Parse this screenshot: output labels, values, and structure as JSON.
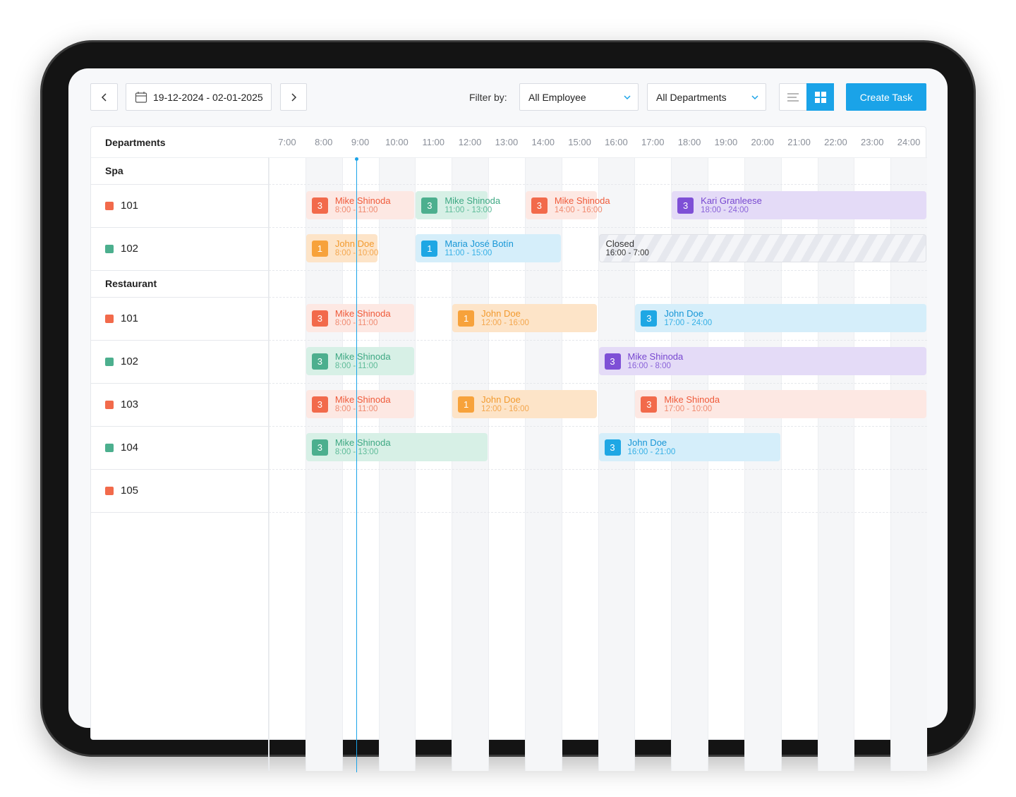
{
  "toolbar": {
    "date_range": "19-12-2024 - 02-01-2025",
    "filter_label": "Filter by:",
    "employee_filter": "All Employee",
    "department_filter": "All Departments",
    "create_button": "Create Task"
  },
  "schedule": {
    "header": "Departments",
    "hours": [
      "7:00",
      "8:00",
      "9:00",
      "10:00",
      "11:00",
      "12:00",
      "13:00",
      "14:00",
      "15:00",
      "16:00",
      "17:00",
      "18:00",
      "19:00",
      "20:00",
      "21:00",
      "22:00",
      "23:00",
      "24:00"
    ],
    "groups": [
      {
        "name": "Spa",
        "rooms": [
          {
            "name": "101",
            "color": "red",
            "events": [
              {
                "badge": "3",
                "name": "Mike Shinoda",
                "time": "8:00 - 11:00",
                "color": "red"
              },
              {
                "badge": "3",
                "name": "Mike Shinoda",
                "time": "11:00 - 13:00",
                "color": "green"
              },
              {
                "badge": "3",
                "name": "Mike Shinoda",
                "time": "14:00 - 16:00",
                "color": "red"
              },
              {
                "badge": "3",
                "name": "Kari Granleese",
                "time": "18:00 - 24:00",
                "color": "purple"
              }
            ]
          },
          {
            "name": "102",
            "color": "green",
            "events": [
              {
                "badge": "1",
                "name": "John Doe",
                "time": "8:00 - 10:00",
                "color": "orange"
              },
              {
                "badge": "1",
                "name": "Maria José Botín",
                "time": "11:00 - 15:00",
                "color": "blue"
              },
              {
                "name": "Closed",
                "time": "16:00 - 7:00",
                "color": "closed"
              }
            ]
          }
        ]
      },
      {
        "name": "Restaurant",
        "rooms": [
          {
            "name": "101",
            "color": "red",
            "events": [
              {
                "badge": "3",
                "name": "Mike Shinoda",
                "time": "8:00 - 11:00",
                "color": "red"
              },
              {
                "badge": "1",
                "name": "John Doe",
                "time": "12:00 - 16:00",
                "color": "orange"
              },
              {
                "badge": "3",
                "name": "John Doe",
                "time": "17:00 - 24:00",
                "color": "blue"
              }
            ]
          },
          {
            "name": "102",
            "color": "green",
            "events": [
              {
                "badge": "3",
                "name": "Mike Shinoda",
                "time": "8:00 - 11:00",
                "color": "green"
              },
              {
                "badge": "3",
                "name": "Mike Shinoda",
                "time": "16:00 - 8:00",
                "color": "purple"
              }
            ]
          },
          {
            "name": "103",
            "color": "red",
            "events": [
              {
                "badge": "3",
                "name": "Mike Shinoda",
                "time": "8:00 - 11:00",
                "color": "red"
              },
              {
                "badge": "1",
                "name": "John Doe",
                "time": "12:00 - 16:00",
                "color": "orange"
              },
              {
                "badge": "3",
                "name": "Mike Shinoda",
                "time": "17:00 - 10:00",
                "color": "red"
              }
            ]
          },
          {
            "name": "104",
            "color": "green",
            "events": [
              {
                "badge": "3",
                "name": "Mike Shinoda",
                "time": "8:00 - 13:00",
                "color": "green"
              },
              {
                "badge": "3",
                "name": "John Doe",
                "time": "16:00 - 21:00",
                "color": "blue"
              }
            ]
          },
          {
            "name": "105",
            "color": "red",
            "events": []
          }
        ]
      }
    ]
  }
}
